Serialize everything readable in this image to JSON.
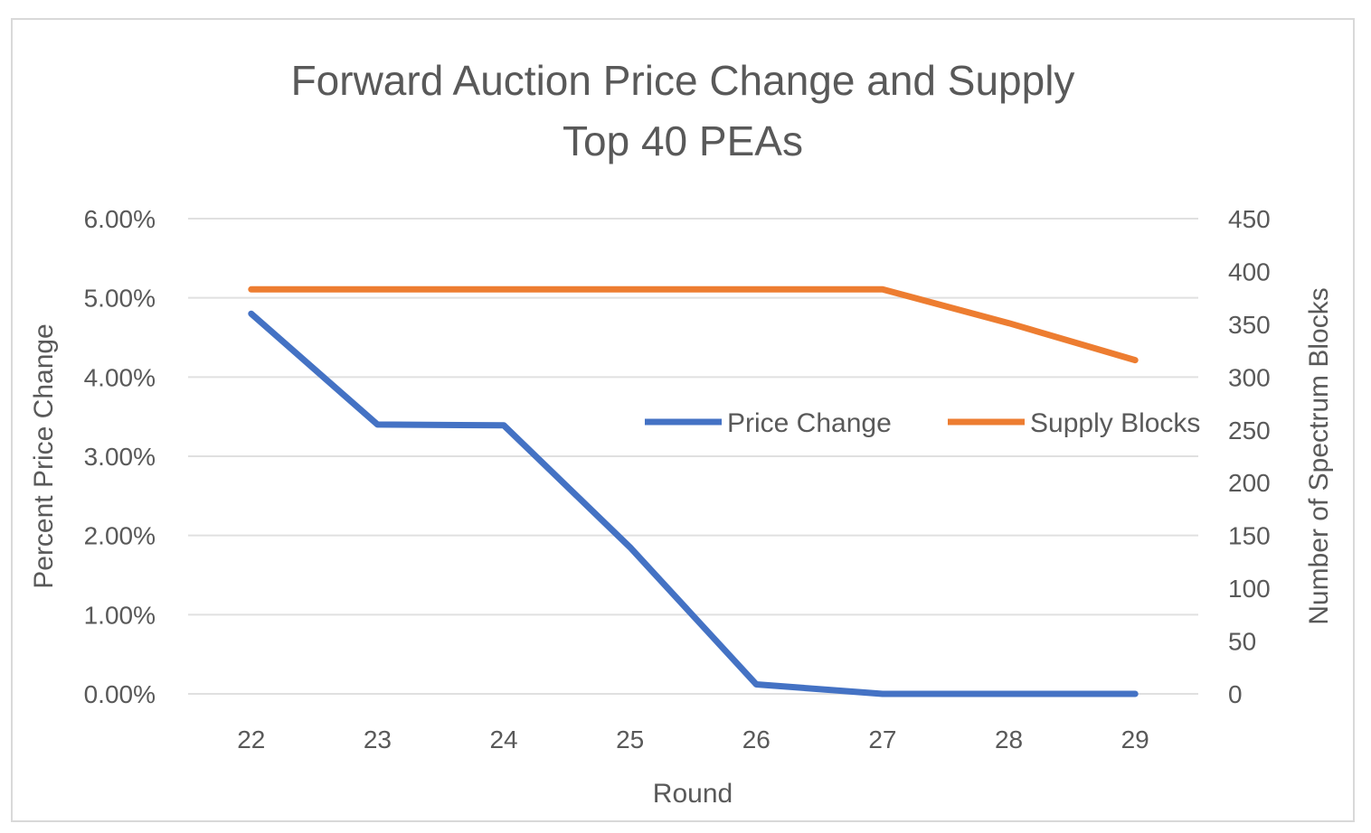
{
  "chart_data": {
    "type": "line",
    "title_line1": "Forward Auction Price Change and Supply",
    "title_line2": "Top 40 PEAs",
    "xlabel": "Round",
    "ylabel": "Percent Price Change",
    "y2label": "Number of Spectrum Blocks",
    "categories": [
      "22",
      "23",
      "24",
      "25",
      "26",
      "27",
      "28",
      "29"
    ],
    "ylim": [
      0,
      0.06
    ],
    "y_ticks": [
      "6.00%",
      "5.00%",
      "4.00%",
      "3.00%",
      "2.00%",
      "1.00%",
      "0.00%"
    ],
    "y2lim": [
      0,
      450
    ],
    "y2_ticks": [
      "450",
      "400",
      "350",
      "300",
      "250",
      "200",
      "150",
      "100",
      "50",
      "0"
    ],
    "grid": true,
    "legend_position": "center-right",
    "series": [
      {
        "name": "Price Change",
        "axis": "left",
        "color": "#4472c4",
        "values": [
          0.048,
          0.034,
          0.0339,
          0.0185,
          0.0012,
          0.0,
          0.0,
          0.0
        ]
      },
      {
        "name": "Supply Blocks",
        "axis": "right",
        "color": "#ed7d31",
        "values": [
          383,
          383,
          383,
          383,
          383,
          383,
          351,
          316
        ]
      }
    ]
  }
}
